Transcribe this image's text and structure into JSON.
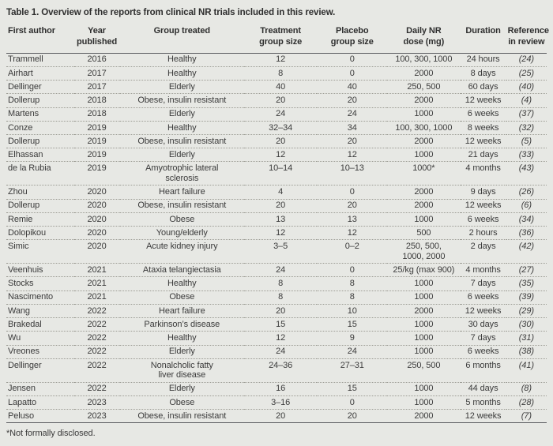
{
  "title": "Table 1. Overview of the reports from clinical NR trials included in this review.",
  "colors": {
    "background": "#e7e8e4",
    "text": "#3b3b3b",
    "heading": "#2e2e2e",
    "rule": "#595a5e",
    "dotted_separator": "#9c9c94"
  },
  "table": {
    "columns": [
      {
        "id": "first-author",
        "label": "First author",
        "align": "left"
      },
      {
        "id": "year-published",
        "label": "Year\npublished"
      },
      {
        "id": "group-treated",
        "label": "Group treated"
      },
      {
        "id": "treatment-group-size",
        "label": "Treatment\ngroup size"
      },
      {
        "id": "placebo-group-size",
        "label": "Placebo\ngroup size"
      },
      {
        "id": "daily-nr-dose",
        "label": "Daily NR\ndose (mg)"
      },
      {
        "id": "duration",
        "label": "Duration"
      },
      {
        "id": "reference-in-review",
        "label": "Reference\nin review"
      }
    ],
    "rows": [
      [
        "Trammell",
        "2016",
        "Healthy",
        "12",
        "0",
        "100, 300, 1000",
        "24 hours",
        "(24)"
      ],
      [
        "Airhart",
        "2017",
        "Healthy",
        "8",
        "0",
        "2000",
        "8 days",
        "(25)"
      ],
      [
        "Dellinger",
        "2017",
        "Elderly",
        "40",
        "40",
        "250, 500",
        "60 days",
        "(40)"
      ],
      [
        "Dollerup",
        "2018",
        "Obese, insulin resistant",
        "20",
        "20",
        "2000",
        "12 weeks",
        "(4)"
      ],
      [
        "Martens",
        "2018",
        "Elderly",
        "24",
        "24",
        "1000",
        "6 weeks",
        "(37)"
      ],
      [
        "Conze",
        "2019",
        "Healthy",
        "32–34",
        "34",
        "100, 300, 1000",
        "8 weeks",
        "(32)"
      ],
      [
        "Dollerup",
        "2019",
        "Obese, insulin resistant",
        "20",
        "20",
        "2000",
        "12 weeks",
        "(5)"
      ],
      [
        "Elhassan",
        "2019",
        "Elderly",
        "12",
        "12",
        "1000",
        "21 days",
        "(33)"
      ],
      [
        "de la Rubia",
        "2019",
        "Amyotrophic lateral\nsclerosis",
        "10–14",
        "10–13",
        "1000*",
        "4 months",
        "(43)"
      ],
      [
        "Zhou",
        "2020",
        "Heart failure",
        "4",
        "0",
        "2000",
        "9 days",
        "(26)"
      ],
      [
        "Dollerup",
        "2020",
        "Obese, insulin resistant",
        "20",
        "20",
        "2000",
        "12 weeks",
        "(6)"
      ],
      [
        "Remie",
        "2020",
        "Obese",
        "13",
        "13",
        "1000",
        "6 weeks",
        "(34)"
      ],
      [
        "Dolopikou",
        "2020",
        "Young/elderly",
        "12",
        "12",
        "500",
        "2 hours",
        "(36)"
      ],
      [
        "Simic",
        "2020",
        "Acute kidney injury",
        "3–5",
        "0–2",
        "250, 500,\n1000, 2000",
        "2 days",
        "(42)"
      ],
      [
        "Veenhuis",
        "2021",
        "Ataxia telangiectasia",
        "24",
        "0",
        "25/kg (max 900)",
        "4 months",
        "(27)"
      ],
      [
        "Stocks",
        "2021",
        "Healthy",
        "8",
        "8",
        "1000",
        "7 days",
        "(35)"
      ],
      [
        "Nascimento",
        "2021",
        "Obese",
        "8",
        "8",
        "1000",
        "6 weeks",
        "(39)"
      ],
      [
        "Wang",
        "2022",
        "Heart failure",
        "20",
        "10",
        "2000",
        "12 weeks",
        "(29)"
      ],
      [
        "Brakedal",
        "2022",
        "Parkinson’s disease",
        "15",
        "15",
        "1000",
        "30 days",
        "(30)"
      ],
      [
        "Wu",
        "2022",
        "Healthy",
        "12",
        "9",
        "1000",
        "7 days",
        "(31)"
      ],
      [
        "Vreones",
        "2022",
        "Elderly",
        "24",
        "24",
        "1000",
        "6 weeks",
        "(38)"
      ],
      [
        "Dellinger",
        "2022",
        "Nonalcholic fatty\nliver disease",
        "24–36",
        "27–31",
        "250, 500",
        "6 months",
        "(41)"
      ],
      [
        "Jensen",
        "2022",
        "Elderly",
        "16",
        "15",
        "1000",
        "44 days",
        "(8)"
      ],
      [
        "Lapatto",
        "2023",
        "Obese",
        "3–16",
        "0",
        "1000",
        "5 months",
        "(28)"
      ],
      [
        "Peluso",
        "2023",
        "Obese, insulin resistant",
        "20",
        "20",
        "2000",
        "12 weeks",
        "(7)"
      ]
    ],
    "footnote": "*Not formally disclosed."
  }
}
